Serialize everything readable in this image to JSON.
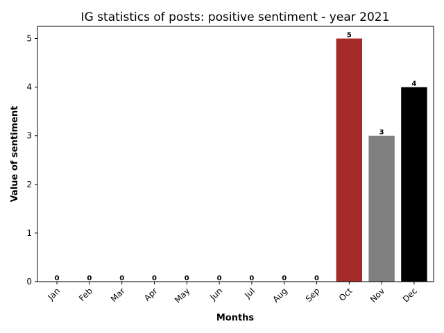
{
  "chart_data": {
    "type": "bar",
    "title": "IG statistics of posts: positive sentiment - year 2021",
    "xlabel": "Months",
    "ylabel": "Value of sentiment",
    "categories": [
      "Jan",
      "Feb",
      "Mar",
      "Apr",
      "May",
      "Jun",
      "Jul",
      "Aug",
      "Sep",
      "Oct",
      "Nov",
      "Dec"
    ],
    "values": [
      0,
      0,
      0,
      0,
      0,
      0,
      0,
      0,
      0,
      5,
      3,
      4
    ],
    "bar_colors": [
      "#a52a2a",
      "#a52a2a",
      "#a52a2a",
      "#a52a2a",
      "#a52a2a",
      "#a52a2a",
      "#a52a2a",
      "#a52a2a",
      "#a52a2a",
      "#a52a2a",
      "#808080",
      "#000000"
    ],
    "ylim": [
      0,
      5.25
    ],
    "yticks": [
      0,
      1,
      2,
      3,
      4,
      5
    ],
    "grid": false,
    "x_tick_rotation_deg": 45
  }
}
